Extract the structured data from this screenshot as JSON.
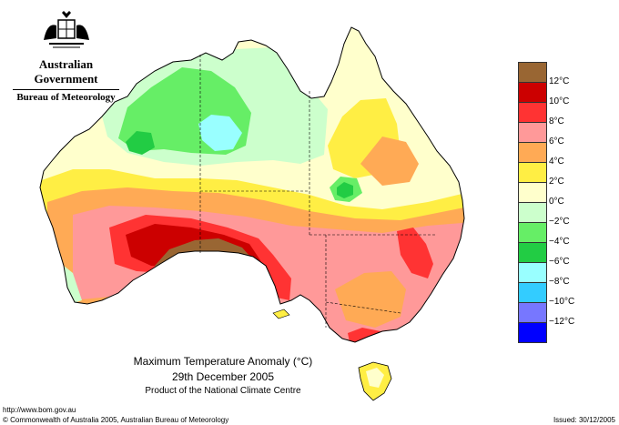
{
  "header": {
    "government": "Australian Government",
    "bureau": "Bureau of Meteorology"
  },
  "legend": {
    "items": [
      {
        "label": "12°C",
        "color": "#996633"
      },
      {
        "label": "10°C",
        "color": "#cc0000"
      },
      {
        "label": "8°C",
        "color": "#ff3333"
      },
      {
        "label": "6°C",
        "color": "#ff9999"
      },
      {
        "label": "4°C",
        "color": "#ffaa55"
      },
      {
        "label": "2°C",
        "color": "#ffee44"
      },
      {
        "label": "0°C",
        "color": "#ffffcc"
      },
      {
        "label": "−2°C",
        "color": "#ccffcc"
      },
      {
        "label": "−4°C",
        "color": "#66ee66"
      },
      {
        "label": "−6°C",
        "color": "#22cc44"
      },
      {
        "label": "−8°C",
        "color": "#99ffff"
      },
      {
        "label": "−10°C",
        "color": "#33ccff"
      },
      {
        "label": "−12°C",
        "color": "#7777ff"
      },
      {
        "label": "",
        "color": "#0000ff"
      }
    ]
  },
  "caption": {
    "title": "Maximum Temperature Anomaly (°C)",
    "date": "29th December 2005",
    "product": "Product of the National Climate Centre"
  },
  "footer": {
    "url": "http://www.bom.gov.au",
    "copyright": "© Commonwealth of Australia 2005, Australian Bureau of Meteorology",
    "issued": "Issued: 30/12/2005"
  }
}
